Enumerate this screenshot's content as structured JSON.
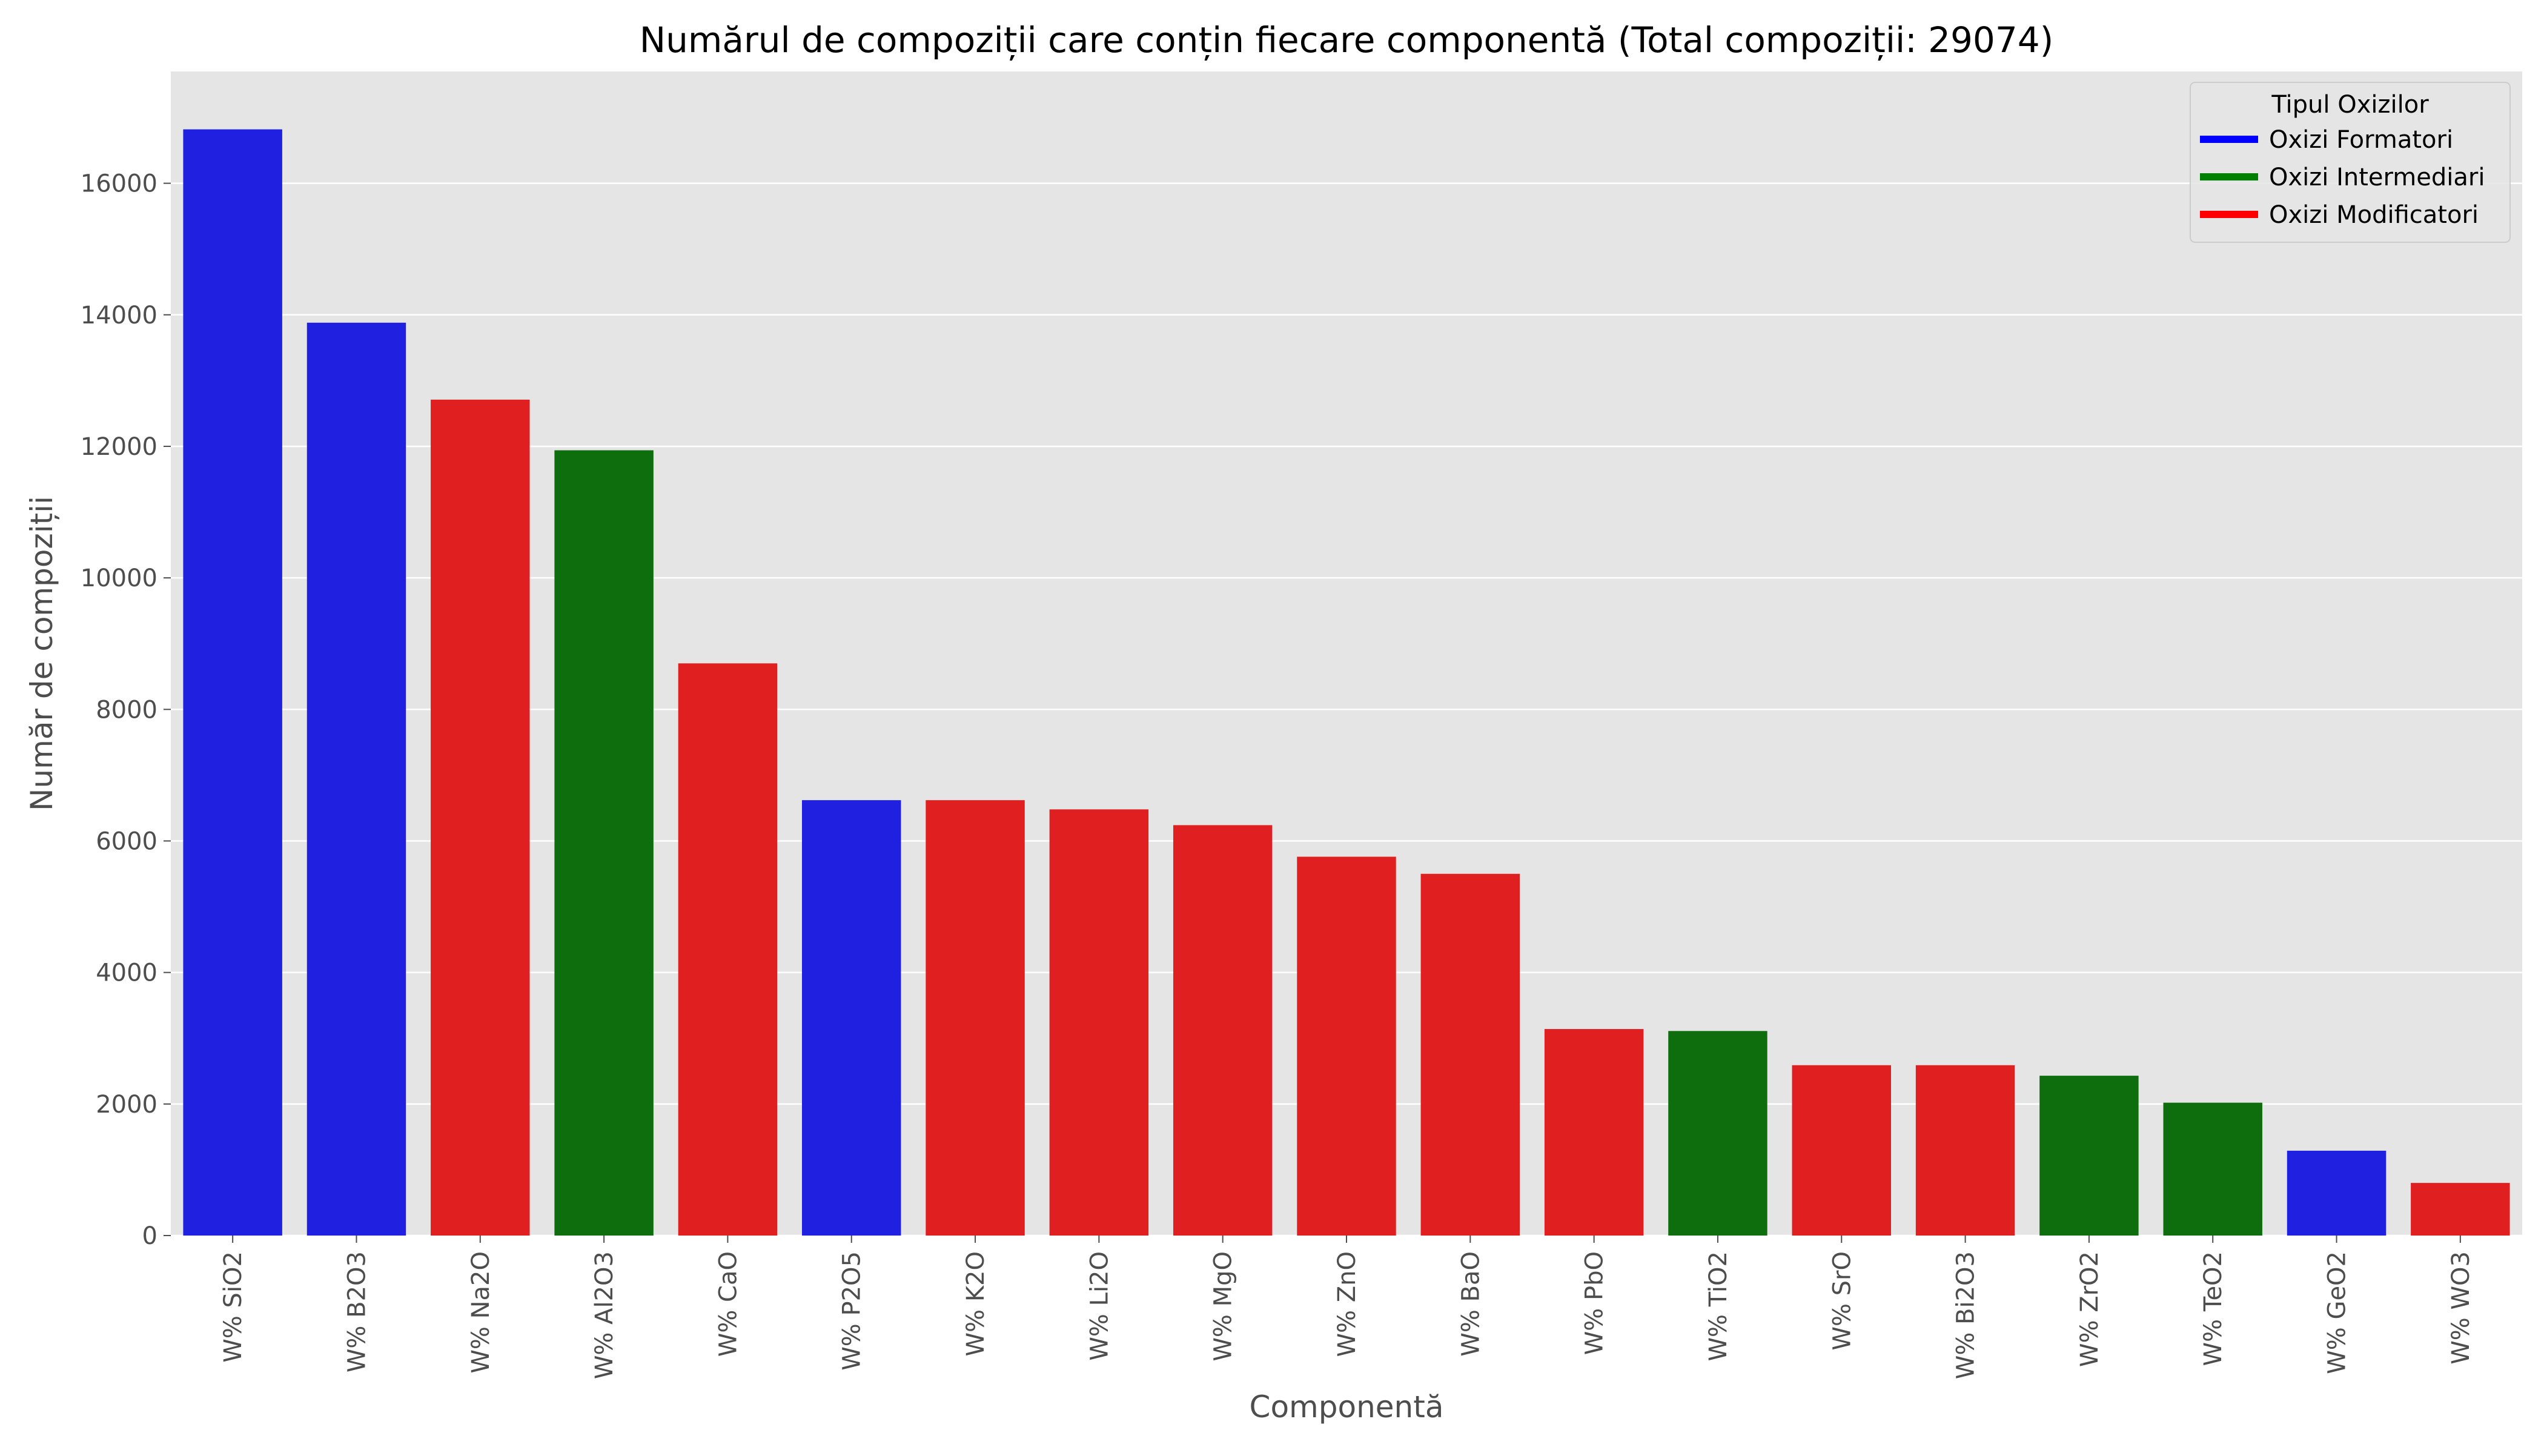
{
  "chart_data": {
    "type": "bar",
    "title": "Numărul de compoziții care conțin fiecare componentă (Total compoziții: 29074)",
    "xlabel": "Componentă",
    "ylabel": "Număr de compoziții",
    "ylim": [
      0,
      17700
    ],
    "yticks": [
      0,
      2000,
      4000,
      6000,
      8000,
      10000,
      12000,
      14000,
      16000
    ],
    "grid": true,
    "categories": [
      "W% SiO2",
      "W% B2O3",
      "W% Na2O",
      "W% Al2O3",
      "W% CaO",
      "W% P2O5",
      "W% K2O",
      "W% Li2O",
      "W% MgO",
      "W% ZnO",
      "W% BaO",
      "W% PbO",
      "W% TiO2",
      "W% SrO",
      "W% Bi2O3",
      "W% ZrO2",
      "W% TeO2",
      "W% GeO2",
      "W% WO3"
    ],
    "values": [
      16820,
      13880,
      12710,
      11940,
      8700,
      6620,
      6620,
      6480,
      6240,
      5760,
      5500,
      3140,
      3110,
      2590,
      2590,
      2430,
      2020,
      1290,
      800
    ],
    "types": [
      "Oxizi Formatori",
      "Oxizi Formatori",
      "Oxizi Modificatori",
      "Oxizi Intermediari",
      "Oxizi Modificatori",
      "Oxizi Formatori",
      "Oxizi Modificatori",
      "Oxizi Modificatori",
      "Oxizi Modificatori",
      "Oxizi Modificatori",
      "Oxizi Modificatori",
      "Oxizi Modificatori",
      "Oxizi Intermediari",
      "Oxizi Modificatori",
      "Oxizi Modificatori",
      "Oxizi Intermediari",
      "Oxizi Intermediari",
      "Oxizi Formatori",
      "Oxizi Modificatori"
    ],
    "legend": {
      "title": "Tipul Oxizilor",
      "placement": "top-right",
      "entries": [
        {
          "name": "Oxizi Formatori",
          "color": "#0000ff"
        },
        {
          "name": "Oxizi Intermediari",
          "color": "#008000"
        },
        {
          "name": "Oxizi Modificatori",
          "color": "#ff0000"
        }
      ]
    },
    "bar_colors": {
      "Oxizi Formatori": "#2020e0",
      "Oxizi Intermediari": "#0e6e0e",
      "Oxizi Modificatori": "#e02020"
    },
    "plot_background": "#e5e5e5",
    "grid_color": "#ffffff"
  }
}
